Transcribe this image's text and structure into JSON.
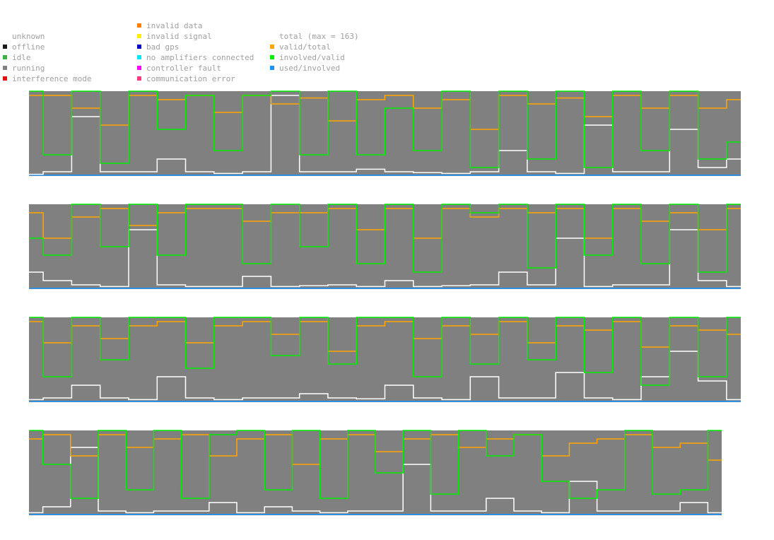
{
  "legend": {
    "status": [
      {
        "label": "unknown",
        "color": "#ffffff"
      },
      {
        "label": "offline",
        "color": "#1a1a1a"
      },
      {
        "label": "idle",
        "color": "#3cb043"
      },
      {
        "label": "running",
        "color": "#808080"
      },
      {
        "label": "interference mode",
        "color": "#e01010"
      }
    ],
    "errors": [
      {
        "label": "invalid data",
        "color": "#ff7f00"
      },
      {
        "label": "invalid signal",
        "color": "#ffee00"
      },
      {
        "label": "bad gps",
        "color": "#0000cc"
      },
      {
        "label": "no amplifiers connected",
        "color": "#00e5ff"
      },
      {
        "label": "controller fault",
        "color": "#ff00ff"
      },
      {
        "label": "communication error",
        "color": "#ff3b7f"
      }
    ],
    "lines": [
      {
        "label": "total (max = 163)",
        "color": "#ffffff"
      },
      {
        "label": "valid/total",
        "color": "#ffa500"
      },
      {
        "label": "involved/valid",
        "color": "#00ee00"
      },
      {
        "label": "used/involved",
        "color": "#1e90ff"
      }
    ]
  },
  "chart_data": {
    "type": "area",
    "title": "",
    "xlabel": "",
    "ylabel": "",
    "ylim": [
      0,
      1
    ],
    "total_max": 163,
    "background_status": "running",
    "strips": [
      {
        "x": [
          0,
          4,
          8,
          12,
          16,
          20,
          24,
          28,
          32,
          36,
          40,
          44,
          48,
          52,
          56,
          60,
          64,
          68,
          72,
          76,
          80,
          84,
          88,
          92,
          96,
          100
        ],
        "valid_total": [
          0.95,
          0.95,
          0.8,
          0.6,
          0.95,
          0.9,
          0.95,
          0.75,
          0.95,
          0.85,
          0.92,
          0.65,
          0.9,
          0.95,
          0.8,
          0.9,
          0.55,
          0.95,
          0.85,
          0.92,
          0.7,
          0.95,
          0.8,
          0.95,
          0.8,
          0.9
        ],
        "involved_valid": [
          1.0,
          0.25,
          1.0,
          0.15,
          1.0,
          0.55,
          0.95,
          0.3,
          0.95,
          1.0,
          0.25,
          1.0,
          0.25,
          0.8,
          0.3,
          1.0,
          0.1,
          1.0,
          0.2,
          1.0,
          0.1,
          1.0,
          0.3,
          1.0,
          0.2,
          0.4
        ],
        "total": [
          0.02,
          0.05,
          0.7,
          0.05,
          0.05,
          0.2,
          0.05,
          0.03,
          0.05,
          0.95,
          0.05,
          0.05,
          0.08,
          0.05,
          0.04,
          0.03,
          0.05,
          0.3,
          0.05,
          0.03,
          0.6,
          0.05,
          0.05,
          0.55,
          0.1,
          0.2
        ],
        "used_involved": [
          0.01,
          0.01,
          0.01,
          0.01,
          0.01,
          0.01,
          0.01,
          0.01,
          0.01,
          0.01,
          0.01,
          0.01,
          0.01,
          0.01,
          0.01,
          0.01,
          0.01,
          0.01,
          0.01,
          0.01,
          0.01,
          0.01,
          0.01,
          0.01,
          0.01,
          0.01
        ]
      },
      {
        "x": [
          0,
          4,
          8,
          12,
          16,
          20,
          24,
          28,
          32,
          36,
          40,
          44,
          48,
          52,
          56,
          60,
          64,
          68,
          72,
          76,
          80,
          84,
          88,
          92,
          96,
          100
        ],
        "valid_total": [
          0.9,
          0.6,
          0.85,
          0.95,
          0.75,
          0.9,
          0.95,
          0.95,
          0.8,
          0.9,
          0.9,
          0.95,
          0.7,
          0.95,
          0.6,
          0.95,
          0.85,
          0.95,
          0.9,
          0.95,
          0.6,
          0.95,
          0.8,
          0.9,
          0.7,
          0.95
        ],
        "involved_valid": [
          0.6,
          0.4,
          1.0,
          0.5,
          1.0,
          0.4,
          1.0,
          1.0,
          0.3,
          1.0,
          0.5,
          1.0,
          0.3,
          1.0,
          0.2,
          1.0,
          0.9,
          1.0,
          0.25,
          1.0,
          0.4,
          1.0,
          0.3,
          1.0,
          0.2,
          1.0
        ],
        "total": [
          0.2,
          0.1,
          0.05,
          0.03,
          0.7,
          0.05,
          0.03,
          0.03,
          0.15,
          0.03,
          0.04,
          0.05,
          0.03,
          0.1,
          0.03,
          0.04,
          0.05,
          0.2,
          0.05,
          0.6,
          0.03,
          0.05,
          0.05,
          0.7,
          0.1,
          0.03
        ],
        "used_involved": [
          0.01,
          0.01,
          0.01,
          0.01,
          0.01,
          0.01,
          0.01,
          0.01,
          0.01,
          0.01,
          0.01,
          0.01,
          0.01,
          0.01,
          0.01,
          0.01,
          0.01,
          0.01,
          0.01,
          0.01,
          0.01,
          0.01,
          0.01,
          0.01,
          0.01,
          0.01
        ]
      },
      {
        "x": [
          0,
          4,
          8,
          12,
          16,
          20,
          24,
          28,
          32,
          36,
          40,
          44,
          48,
          52,
          56,
          60,
          64,
          68,
          72,
          76,
          80,
          84,
          88,
          92,
          96,
          100
        ],
        "valid_total": [
          0.95,
          0.7,
          0.9,
          0.75,
          0.9,
          0.95,
          0.7,
          0.9,
          0.95,
          0.8,
          0.95,
          0.6,
          0.9,
          0.95,
          0.75,
          0.9,
          0.8,
          0.95,
          0.7,
          0.9,
          0.85,
          0.95,
          0.65,
          0.9,
          0.85,
          0.8
        ],
        "involved_valid": [
          1.0,
          0.3,
          1.0,
          0.5,
          1.0,
          1.0,
          0.4,
          1.0,
          1.0,
          0.55,
          1.0,
          0.45,
          1.0,
          1.0,
          0.3,
          1.0,
          0.45,
          1.0,
          0.5,
          1.0,
          0.35,
          1.0,
          0.2,
          1.0,
          0.3,
          1.0
        ],
        "total": [
          0.03,
          0.05,
          0.2,
          0.05,
          0.03,
          0.3,
          0.05,
          0.03,
          0.05,
          0.05,
          0.1,
          0.05,
          0.04,
          0.2,
          0.05,
          0.03,
          0.3,
          0.05,
          0.05,
          0.35,
          0.05,
          0.03,
          0.3,
          0.6,
          0.25,
          0.03
        ],
        "used_involved": [
          0.01,
          0.01,
          0.01,
          0.01,
          0.01,
          0.01,
          0.01,
          0.01,
          0.01,
          0.01,
          0.01,
          0.01,
          0.01,
          0.01,
          0.01,
          0.01,
          0.01,
          0.01,
          0.01,
          0.01,
          0.01,
          0.01,
          0.01,
          0.01,
          0.01,
          0.01
        ]
      },
      {
        "x": [
          0,
          4,
          8,
          12,
          16,
          20,
          24,
          28,
          32,
          36,
          40,
          44,
          48,
          52,
          56,
          60,
          64,
          68,
          72,
          76,
          80,
          84,
          88,
          92,
          96,
          100
        ],
        "valid_total": [
          0.9,
          0.95,
          0.7,
          0.95,
          0.8,
          0.9,
          0.95,
          0.7,
          0.9,
          0.95,
          0.6,
          0.9,
          0.95,
          0.75,
          0.9,
          0.95,
          0.8,
          0.9,
          0.95,
          0.7,
          0.85,
          0.9,
          0.95,
          0.8,
          0.85,
          0.65
        ],
        "involved_valid": [
          1.0,
          0.6,
          0.2,
          1.0,
          0.3,
          1.0,
          0.2,
          0.95,
          1.0,
          0.3,
          1.0,
          0.2,
          1.0,
          0.5,
          1.0,
          0.25,
          1.0,
          0.7,
          0.95,
          0.4,
          0.2,
          0.3,
          1.0,
          0.25,
          0.3,
          1.0
        ],
        "total": [
          0.03,
          0.1,
          0.8,
          0.05,
          0.03,
          0.05,
          0.05,
          0.15,
          0.03,
          0.1,
          0.05,
          0.03,
          0.05,
          0.05,
          0.6,
          0.05,
          0.05,
          0.2,
          0.05,
          0.03,
          0.4,
          0.05,
          0.05,
          0.05,
          0.15,
          0.03
        ],
        "used_involved": [
          0.01,
          0.01,
          0.01,
          0.01,
          0.01,
          0.01,
          0.01,
          0.01,
          0.01,
          0.01,
          0.01,
          0.01,
          0.01,
          0.01,
          0.01,
          0.01,
          0.01,
          0.01,
          0.01,
          0.01,
          0.01,
          0.01,
          0.01,
          0.01,
          0.01,
          0.01
        ]
      }
    ]
  }
}
